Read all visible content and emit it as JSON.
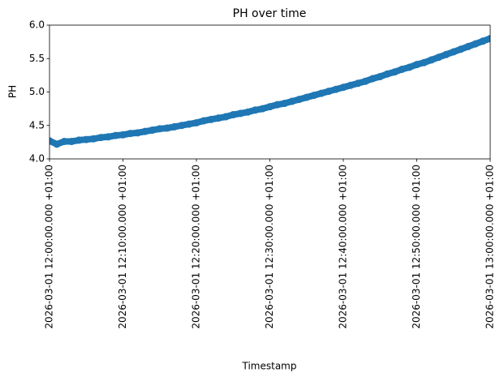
{
  "chart_data": {
    "type": "scatter",
    "title": "PH over time",
    "x_label": "Timestamp",
    "y_label": "PH",
    "color": "#1f77b4",
    "x": [
      "2026-03-01T12:00:00+01:00",
      "2026-03-01T12:01:00+01:00",
      "2026-03-01T12:02:00+01:00",
      "2026-03-01T12:03:00+01:00",
      "2026-03-01T12:04:00+01:00",
      "2026-03-01T12:05:00+01:00",
      "2026-03-01T12:06:00+01:00",
      "2026-03-01T12:07:00+01:00",
      "2026-03-01T12:08:00+01:00",
      "2026-03-01T12:09:00+01:00",
      "2026-03-01T12:10:00+01:00",
      "2026-03-01T12:11:00+01:00",
      "2026-03-01T12:12:00+01:00",
      "2026-03-01T12:13:00+01:00",
      "2026-03-01T12:14:00+01:00",
      "2026-03-01T12:15:00+01:00",
      "2026-03-01T12:16:00+01:00",
      "2026-03-01T12:17:00+01:00",
      "2026-03-01T12:18:00+01:00",
      "2026-03-01T12:19:00+01:00",
      "2026-03-01T12:20:00+01:00",
      "2026-03-01T12:21:00+01:00",
      "2026-03-01T12:22:00+01:00",
      "2026-03-01T12:23:00+01:00",
      "2026-03-01T12:24:00+01:00",
      "2026-03-01T12:25:00+01:00",
      "2026-03-01T12:26:00+01:00",
      "2026-03-01T12:27:00+01:00",
      "2026-03-01T12:28:00+01:00",
      "2026-03-01T12:29:00+01:00",
      "2026-03-01T12:30:00+01:00",
      "2026-03-01T12:31:00+01:00",
      "2026-03-01T12:32:00+01:00",
      "2026-03-01T12:33:00+01:00",
      "2026-03-01T12:34:00+01:00",
      "2026-03-01T12:35:00+01:00",
      "2026-03-01T12:36:00+01:00",
      "2026-03-01T12:37:00+01:00",
      "2026-03-01T12:38:00+01:00",
      "2026-03-01T12:39:00+01:00",
      "2026-03-01T12:40:00+01:00",
      "2026-03-01T12:41:00+01:00",
      "2026-03-01T12:42:00+01:00",
      "2026-03-01T12:43:00+01:00",
      "2026-03-01T12:44:00+01:00",
      "2026-03-01T12:45:00+01:00",
      "2026-03-01T12:46:00+01:00",
      "2026-03-01T12:47:00+01:00",
      "2026-03-01T12:48:00+01:00",
      "2026-03-01T12:49:00+01:00",
      "2026-03-01T12:50:00+01:00",
      "2026-03-01T12:51:00+01:00",
      "2026-03-01T12:52:00+01:00",
      "2026-03-01T12:53:00+01:00",
      "2026-03-01T12:54:00+01:00",
      "2026-03-01T12:55:00+01:00",
      "2026-03-01T12:56:00+01:00",
      "2026-03-01T12:57:00+01:00",
      "2026-03-01T12:58:00+01:00",
      "2026-03-01T12:59:00+01:00",
      "2026-03-01T13:00:00+01:00"
    ],
    "values": [
      4.27,
      4.22,
      4.26,
      4.26,
      4.28,
      4.29,
      4.3,
      4.32,
      4.33,
      4.35,
      4.36,
      4.38,
      4.39,
      4.41,
      4.43,
      4.45,
      4.46,
      4.48,
      4.5,
      4.52,
      4.54,
      4.57,
      4.59,
      4.61,
      4.63,
      4.66,
      4.68,
      4.7,
      4.73,
      4.75,
      4.78,
      4.81,
      4.83,
      4.86,
      4.89,
      4.92,
      4.95,
      4.98,
      5.01,
      5.04,
      5.07,
      5.1,
      5.13,
      5.16,
      5.2,
      5.23,
      5.27,
      5.3,
      5.34,
      5.37,
      5.41,
      5.44,
      5.48,
      5.52,
      5.56,
      5.6,
      5.64,
      5.68,
      5.72,
      5.76,
      5.8
    ],
    "xlim": [
      "2026-03-01T12:00:00+01:00",
      "2026-03-01T13:00:00+01:00"
    ],
    "xticks": [
      {
        "value": "2026-03-01T12:00:00+01:00",
        "label": "2026-03-01 12:00:00.000 +01:00"
      },
      {
        "value": "2026-03-01T12:10:00+01:00",
        "label": "2026-03-01 12:10:00.000 +01:00"
      },
      {
        "value": "2026-03-01T12:20:00+01:00",
        "label": "2026-03-01 12:20:00.000 +01:00"
      },
      {
        "value": "2026-03-01T12:30:00+01:00",
        "label": "2026-03-01 12:30:00.000 +01:00"
      },
      {
        "value": "2026-03-01T12:40:00+01:00",
        "label": "2026-03-01 12:40:00.000 +01:00"
      },
      {
        "value": "2026-03-01T12:50:00+01:00",
        "label": "2026-03-01 12:50:00.000 +01:00"
      },
      {
        "value": "2026-03-01T13:00:00+01:00",
        "label": "2026-03-01 13:00:00.000 +01:00"
      }
    ],
    "ylim": [
      4.0,
      6.0
    ],
    "yticks": [
      {
        "value": 4.0,
        "label": "4.0"
      },
      4.5,
      {
        "value": 5.0,
        "label": "5.0"
      },
      5.5,
      {
        "value": 6.0,
        "label": "6.0"
      }
    ]
  }
}
